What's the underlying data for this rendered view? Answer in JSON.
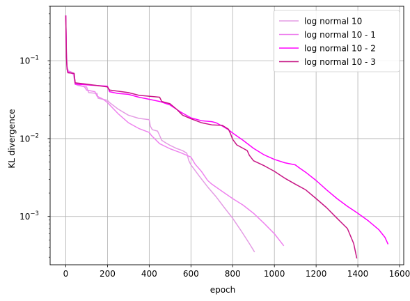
{
  "chart_data": {
    "type": "line",
    "title": "",
    "xlabel": "epoch",
    "ylabel": "KL divergence",
    "xlim": [
      -75,
      1620
    ],
    "ylim": [
      0.00024,
      0.5
    ],
    "yscale": "log",
    "grid": true,
    "legend_position": "top-right",
    "x_ticks": [
      0,
      200,
      400,
      600,
      800,
      1000,
      1200,
      1400,
      1600
    ],
    "x_tick_labels": [
      "0",
      "200",
      "400",
      "600",
      "800",
      "1000",
      "1200",
      "1400",
      "1600"
    ],
    "y_ticks": [
      0.001,
      0.01,
      0.1
    ],
    "y_tick_labels": [
      {
        "base": "10",
        "exp": "−3"
      },
      {
        "base": "10",
        "exp": "−2"
      },
      {
        "base": "10",
        "exp": "−1"
      }
    ],
    "series": [
      {
        "name": "log normal 10",
        "color": "#e49ce4",
        "points": [
          [
            0,
            0.38
          ],
          [
            3,
            0.12
          ],
          [
            6,
            0.08
          ],
          [
            10,
            0.074
          ],
          [
            20,
            0.072
          ],
          [
            35,
            0.07
          ],
          [
            45,
            0.05
          ],
          [
            60,
            0.048
          ],
          [
            100,
            0.046
          ],
          [
            110,
            0.039
          ],
          [
            150,
            0.038
          ],
          [
            155,
            0.033
          ],
          [
            200,
            0.031
          ],
          [
            210,
            0.029
          ],
          [
            250,
            0.024
          ],
          [
            300,
            0.02
          ],
          [
            350,
            0.0182
          ],
          [
            400,
            0.0175
          ],
          [
            405,
            0.0145
          ],
          [
            415,
            0.013
          ],
          [
            440,
            0.0125
          ],
          [
            450,
            0.011
          ],
          [
            460,
            0.0095
          ],
          [
            480,
            0.0088
          ],
          [
            500,
            0.0082
          ],
          [
            530,
            0.0075
          ],
          [
            560,
            0.007
          ],
          [
            580,
            0.0065
          ],
          [
            590,
            0.0052
          ],
          [
            600,
            0.0046
          ],
          [
            640,
            0.0033
          ],
          [
            680,
            0.0024
          ],
          [
            720,
            0.0018
          ],
          [
            760,
            0.0013
          ],
          [
            800,
            0.00095
          ],
          [
            840,
            0.00066
          ],
          [
            880,
            0.00045
          ],
          [
            905,
            0.00035
          ]
        ]
      },
      {
        "name": "log normal 10 - 1",
        "color": "#ee82ee",
        "points": [
          [
            0,
            0.38
          ],
          [
            3,
            0.13
          ],
          [
            6,
            0.085
          ],
          [
            12,
            0.074
          ],
          [
            25,
            0.072
          ],
          [
            40,
            0.065
          ],
          [
            45,
            0.052
          ],
          [
            60,
            0.049
          ],
          [
            90,
            0.046
          ],
          [
            100,
            0.042
          ],
          [
            140,
            0.04
          ],
          [
            150,
            0.035
          ],
          [
            180,
            0.032
          ],
          [
            200,
            0.029
          ],
          [
            250,
            0.021
          ],
          [
            300,
            0.016
          ],
          [
            350,
            0.0135
          ],
          [
            400,
            0.012
          ],
          [
            410,
            0.011
          ],
          [
            450,
            0.0086
          ],
          [
            500,
            0.0074
          ],
          [
            550,
            0.0066
          ],
          [
            600,
            0.0058
          ],
          [
            620,
            0.0047
          ],
          [
            650,
            0.0038
          ],
          [
            680,
            0.0029
          ],
          [
            700,
            0.0026
          ],
          [
            750,
            0.0021
          ],
          [
            800,
            0.0017
          ],
          [
            850,
            0.0014
          ],
          [
            900,
            0.0011
          ],
          [
            950,
            0.00082
          ],
          [
            1000,
            0.0006
          ],
          [
            1045,
            0.00042
          ]
        ]
      },
      {
        "name": "log normal 10 - 2",
        "color": "#ff00ff",
        "points": [
          [
            0,
            0.38
          ],
          [
            3,
            0.12
          ],
          [
            6,
            0.08
          ],
          [
            10,
            0.072
          ],
          [
            20,
            0.07
          ],
          [
            40,
            0.068
          ],
          [
            45,
            0.05
          ],
          [
            100,
            0.049
          ],
          [
            150,
            0.048
          ],
          [
            200,
            0.047
          ],
          [
            210,
            0.04
          ],
          [
            250,
            0.038
          ],
          [
            300,
            0.037
          ],
          [
            350,
            0.034
          ],
          [
            400,
            0.032
          ],
          [
            450,
            0.03
          ],
          [
            500,
            0.027
          ],
          [
            550,
            0.022
          ],
          [
            600,
            0.0185
          ],
          [
            650,
            0.017
          ],
          [
            700,
            0.0165
          ],
          [
            720,
            0.016
          ],
          [
            750,
            0.0145
          ],
          [
            780,
            0.013
          ],
          [
            800,
            0.0118
          ],
          [
            850,
            0.0095
          ],
          [
            900,
            0.0075
          ],
          [
            950,
            0.0062
          ],
          [
            1000,
            0.0054
          ],
          [
            1050,
            0.0049
          ],
          [
            1100,
            0.0046
          ],
          [
            1120,
            0.0042
          ],
          [
            1150,
            0.0037
          ],
          [
            1200,
            0.0029
          ],
          [
            1250,
            0.0022
          ],
          [
            1300,
            0.0017
          ],
          [
            1350,
            0.00135
          ],
          [
            1400,
            0.0011
          ],
          [
            1450,
            0.00088
          ],
          [
            1500,
            0.00068
          ],
          [
            1530,
            0.00054
          ],
          [
            1545,
            0.00044
          ]
        ]
      },
      {
        "name": "log normal 10 - 3",
        "color": "#c71585",
        "points": [
          [
            0,
            0.38
          ],
          [
            3,
            0.11
          ],
          [
            6,
            0.078
          ],
          [
            10,
            0.07
          ],
          [
            40,
            0.069
          ],
          [
            45,
            0.052
          ],
          [
            100,
            0.05
          ],
          [
            200,
            0.046
          ],
          [
            210,
            0.042
          ],
          [
            300,
            0.039
          ],
          [
            350,
            0.036
          ],
          [
            400,
            0.035
          ],
          [
            450,
            0.034
          ],
          [
            460,
            0.03
          ],
          [
            500,
            0.028
          ],
          [
            530,
            0.024
          ],
          [
            560,
            0.02
          ],
          [
            600,
            0.018
          ],
          [
            650,
            0.016
          ],
          [
            700,
            0.015
          ],
          [
            750,
            0.0148
          ],
          [
            780,
            0.0132
          ],
          [
            790,
            0.0115
          ],
          [
            800,
            0.0098
          ],
          [
            820,
            0.0083
          ],
          [
            850,
            0.0075
          ],
          [
            870,
            0.007
          ],
          [
            880,
            0.0061
          ],
          [
            900,
            0.0052
          ],
          [
            950,
            0.0045
          ],
          [
            1000,
            0.0038
          ],
          [
            1050,
            0.0031
          ],
          [
            1100,
            0.0026
          ],
          [
            1150,
            0.0022
          ],
          [
            1200,
            0.0017
          ],
          [
            1250,
            0.0013
          ],
          [
            1300,
            0.00095
          ],
          [
            1350,
            0.0007
          ],
          [
            1380,
            0.00045
          ],
          [
            1395,
            0.00029
          ]
        ]
      }
    ]
  }
}
